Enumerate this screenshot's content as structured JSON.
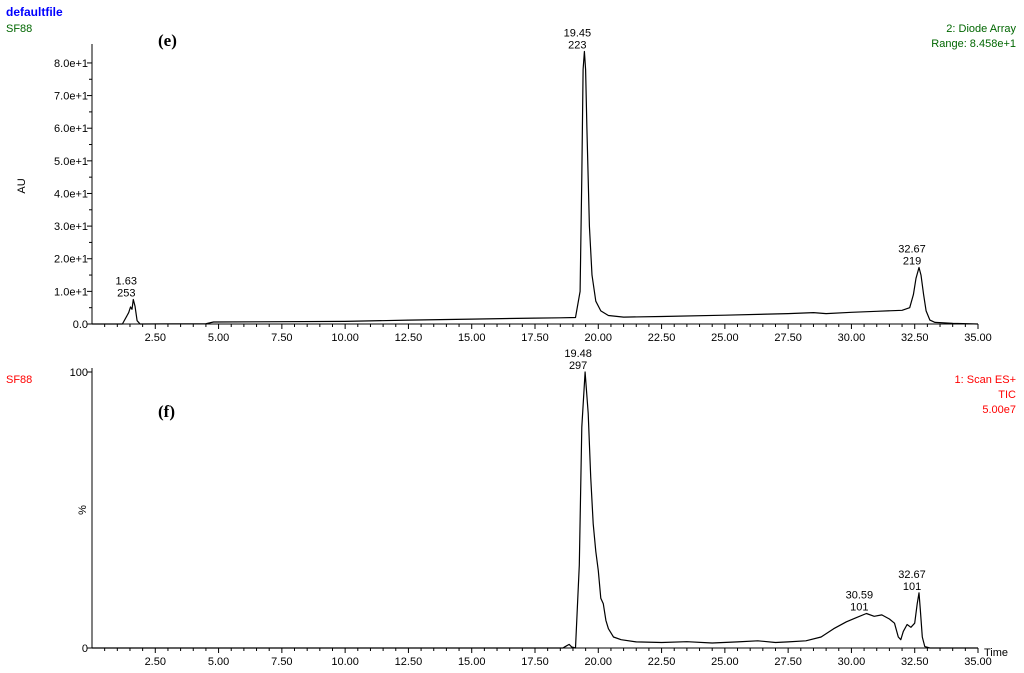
{
  "header": {
    "file": "defaultfile",
    "file_color": "#0000ff"
  },
  "colors": {
    "trace": "#000000",
    "green": "#006600",
    "red": "#ff0000"
  },
  "chart_data": [
    {
      "type": "line",
      "panel_label": "(e)",
      "sample": "SF88",
      "sample_color": "#006600",
      "info_lines": [
        "2: Diode Array",
        "Range: 8.458e+1"
      ],
      "info_color": "#006600",
      "ylabel": "AU",
      "xlabel": "",
      "xlim": [
        0,
        35
      ],
      "ylim": [
        0,
        84.58
      ],
      "x_ticks": [
        "2.50",
        "5.00",
        "7.50",
        "10.00",
        "12.50",
        "15.00",
        "17.50",
        "20.00",
        "22.50",
        "25.00",
        "27.50",
        "30.00",
        "32.50",
        "35.00"
      ],
      "y_ticks": [
        {
          "v": 0,
          "t": "0.0"
        },
        {
          "v": 10,
          "t": "1.0e+1"
        },
        {
          "v": 20,
          "t": "2.0e+1"
        },
        {
          "v": 30,
          "t": "3.0e+1"
        },
        {
          "v": 40,
          "t": "4.0e+1"
        },
        {
          "v": 50,
          "t": "5.0e+1"
        },
        {
          "v": 60,
          "t": "6.0e+1"
        },
        {
          "v": 70,
          "t": "7.0e+1"
        },
        {
          "v": 80,
          "t": "8.0e+1"
        }
      ],
      "peaks": [
        {
          "rt": "1.63",
          "mz": "253",
          "x": 1.63,
          "y": 7.5
        },
        {
          "rt": "19.45",
          "mz": "223",
          "x": 19.45,
          "y": 83.5
        },
        {
          "rt": "32.67",
          "mz": "219",
          "x": 32.67,
          "y": 17.3
        }
      ],
      "series": [
        {
          "points": [
            [
              0.0,
              0.0
            ],
            [
              1.2,
              0.0
            ],
            [
              1.45,
              3.5
            ],
            [
              1.52,
              5.2
            ],
            [
              1.58,
              4.5
            ],
            [
              1.63,
              7.5
            ],
            [
              1.7,
              5.5
            ],
            [
              1.78,
              1.0
            ],
            [
              1.9,
              0.0
            ],
            [
              4.5,
              0.1
            ],
            [
              4.8,
              0.6
            ],
            [
              7.5,
              0.7
            ],
            [
              10.0,
              0.8
            ],
            [
              12.5,
              1.2
            ],
            [
              15.0,
              1.5
            ],
            [
              17.5,
              1.8
            ],
            [
              18.5,
              1.9
            ],
            [
              19.1,
              2.0
            ],
            [
              19.28,
              10.0
            ],
            [
              19.35,
              45.0
            ],
            [
              19.4,
              78.0
            ],
            [
              19.45,
              83.5
            ],
            [
              19.5,
              78.0
            ],
            [
              19.55,
              60.0
            ],
            [
              19.65,
              30.0
            ],
            [
              19.75,
              15.0
            ],
            [
              19.9,
              7.0
            ],
            [
              20.1,
              4.0
            ],
            [
              20.4,
              2.6
            ],
            [
              21.0,
              2.1
            ],
            [
              22.5,
              2.3
            ],
            [
              25.0,
              2.7
            ],
            [
              27.5,
              3.2
            ],
            [
              28.5,
              3.5
            ],
            [
              29.0,
              3.2
            ],
            [
              30.0,
              3.6
            ],
            [
              31.0,
              3.9
            ],
            [
              32.0,
              4.2
            ],
            [
              32.3,
              5.0
            ],
            [
              32.45,
              9.0
            ],
            [
              32.55,
              14.0
            ],
            [
              32.67,
              17.3
            ],
            [
              32.75,
              15.0
            ],
            [
              32.85,
              9.0
            ],
            [
              32.95,
              4.0
            ],
            [
              33.1,
              1.2
            ],
            [
              33.3,
              0.5
            ],
            [
              34.0,
              0.2
            ],
            [
              35.0,
              0.0
            ]
          ]
        }
      ]
    },
    {
      "type": "line",
      "panel_label": "(f)",
      "sample": "SF88",
      "sample_color": "#ff0000",
      "info_lines": [
        "1: Scan ES+",
        "TIC",
        "5.00e7"
      ],
      "info_color": "#ff0000",
      "ylabel": "%",
      "xlabel": "Time",
      "xlim": [
        0,
        35
      ],
      "ylim": [
        0,
        100
      ],
      "x_ticks": [
        "2.50",
        "5.00",
        "7.50",
        "10.00",
        "12.50",
        "15.00",
        "17.50",
        "20.00",
        "22.50",
        "25.00",
        "27.50",
        "30.00",
        "32.50",
        "35.00"
      ],
      "y_ticks": [
        {
          "v": 0,
          "t": "0"
        },
        {
          "v": 100,
          "t": "100"
        }
      ],
      "peaks": [
        {
          "rt": "19.48",
          "mz": "297",
          "x": 19.48,
          "y": 100
        },
        {
          "rt": "30.59",
          "mz": "101",
          "x": 30.59,
          "y": 12.5
        },
        {
          "rt": "32.67",
          "mz": "101",
          "x": 32.67,
          "y": 20.0
        }
      ],
      "series": [
        {
          "points": [
            [
              0.0,
              0.0
            ],
            [
              18.6,
              0.0
            ],
            [
              18.75,
              0.8
            ],
            [
              18.85,
              1.3
            ],
            [
              18.95,
              0.4
            ],
            [
              19.1,
              0.0
            ],
            [
              19.25,
              30.0
            ],
            [
              19.35,
              80.0
            ],
            [
              19.48,
              100.0
            ],
            [
              19.6,
              85.0
            ],
            [
              19.7,
              62.0
            ],
            [
              19.8,
              45.0
            ],
            [
              19.9,
              35.0
            ],
            [
              20.0,
              28.0
            ],
            [
              20.1,
              18.0
            ],
            [
              20.2,
              16.0
            ],
            [
              20.3,
              10.0
            ],
            [
              20.4,
              7.0
            ],
            [
              20.6,
              4.0
            ],
            [
              20.9,
              3.0
            ],
            [
              21.5,
              2.2
            ],
            [
              22.5,
              2.0
            ],
            [
              23.5,
              2.3
            ],
            [
              24.5,
              1.8
            ],
            [
              25.5,
              2.2
            ],
            [
              26.3,
              2.6
            ],
            [
              27.0,
              2.0
            ],
            [
              27.5,
              2.2
            ],
            [
              28.2,
              2.6
            ],
            [
              28.8,
              4.0
            ],
            [
              29.3,
              7.0
            ],
            [
              29.8,
              9.5
            ],
            [
              30.2,
              11.0
            ],
            [
              30.59,
              12.5
            ],
            [
              30.9,
              11.5
            ],
            [
              31.2,
              12.0
            ],
            [
              31.5,
              10.5
            ],
            [
              31.7,
              9.0
            ],
            [
              31.85,
              4.0
            ],
            [
              31.95,
              3.0
            ],
            [
              32.05,
              6.0
            ],
            [
              32.2,
              8.5
            ],
            [
              32.35,
              7.5
            ],
            [
              32.5,
              9.0
            ],
            [
              32.6,
              16.0
            ],
            [
              32.67,
              20.0
            ],
            [
              32.72,
              14.0
            ],
            [
              32.8,
              4.0
            ],
            [
              32.9,
              0.5
            ],
            [
              33.1,
              0.0
            ],
            [
              35.0,
              0.0
            ]
          ]
        }
      ]
    }
  ]
}
